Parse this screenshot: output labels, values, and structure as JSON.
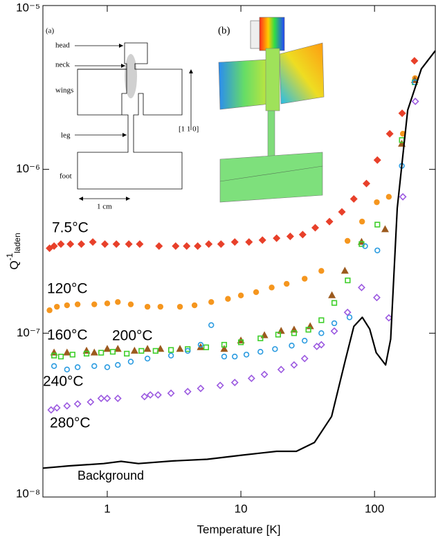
{
  "chart_data": {
    "type": "scatter",
    "xlabel": "Temperature [K]",
    "ylabel": [
      "Q",
      "-1",
      "laden"
    ],
    "xscale": "log",
    "yscale": "log",
    "xlim": [
      0.33,
      285
    ],
    "ylim": [
      1e-08,
      1e-05
    ],
    "xticks": [
      1,
      10,
      100
    ],
    "yticks": [
      {
        "value": 1e-08,
        "label": "10⁻⁸"
      },
      {
        "value": 1e-07,
        "label": "10⁻⁷"
      },
      {
        "value": 1e-06,
        "label": "10⁻⁶"
      },
      {
        "value": 1e-05,
        "label": "10⁻⁵"
      }
    ],
    "series": [
      {
        "name": "7.5°C",
        "color": "#e8402a",
        "marker": "diamond",
        "filled": true,
        "x": [
          0.37,
          0.4,
          0.45,
          0.53,
          0.64,
          0.78,
          0.96,
          1.17,
          1.45,
          1.75,
          2.44,
          3.25,
          3.93,
          4.75,
          5.75,
          7.1,
          9.0,
          11.5,
          14.5,
          18.5,
          23.4,
          29,
          36,
          46,
          57,
          70,
          87,
          105,
          130,
          161,
          199
        ],
        "values": [
          3.3e-07,
          3.4e-07,
          3.5e-07,
          3.5e-07,
          3.5e-07,
          3.6e-07,
          3.5e-07,
          3.5e-07,
          3.5e-07,
          3.5e-07,
          3.4e-07,
          3.4e-07,
          3.4e-07,
          3.4e-07,
          3.5e-07,
          3.5e-07,
          3.6e-07,
          3.6e-07,
          3.7e-07,
          3.8e-07,
          3.9e-07,
          4e-07,
          4.4e-07,
          4.8e-07,
          5.5e-07,
          6.6e-07,
          8.2e-07,
          1.14e-06,
          1.65e-06,
          2.2e-06,
          4.6e-06
        ]
      },
      {
        "name": "120°C",
        "color": "#f5961e",
        "marker": "circle",
        "filled": true,
        "x": [
          0.37,
          0.42,
          0.5,
          0.6,
          0.8,
          1.0,
          1.2,
          1.5,
          2,
          2.5,
          3.5,
          4.5,
          6,
          8,
          10,
          13,
          17,
          22,
          30,
          40,
          62.8,
          80.7,
          104,
          128,
          163,
          201
        ],
        "values": [
          1.38e-07,
          1.45e-07,
          1.48e-07,
          1.5e-07,
          1.5e-07,
          1.52e-07,
          1.55e-07,
          1.5e-07,
          1.45e-07,
          1.45e-07,
          1.45e-07,
          1.48e-07,
          1.55e-07,
          1.62e-07,
          1.7e-07,
          1.78e-07,
          1.9e-07,
          2e-07,
          2.15e-07,
          2.4e-07,
          3.66e-07,
          4.8e-07,
          6.3e-07,
          6.8e-07,
          1.65e-06,
          3.6e-06
        ]
      },
      {
        "name": "160°C",
        "color": "#9c5a1e",
        "marker": "triangle",
        "filled": true,
        "x": [
          0.4,
          0.5,
          0.7,
          0.8,
          1.0,
          1.2,
          1.6,
          2,
          2.5,
          3.5,
          5,
          7.5,
          10,
          15,
          20,
          25,
          33,
          48,
          60,
          80,
          120,
          160,
          200
        ],
        "values": [
          7.6e-08,
          7.6e-08,
          7.8e-08,
          7.6e-08,
          8e-08,
          8e-08,
          7.8e-08,
          8e-08,
          8e-08,
          8e-08,
          8.2e-08,
          8e-08,
          9e-08,
          9.7e-08,
          1.03e-07,
          1.05e-07,
          1.1e-07,
          1.7e-07,
          2.4e-07,
          3.6e-07,
          4.3e-07,
          1.43e-06,
          3.5e-06
        ]
      },
      {
        "name": "200°C",
        "color": "#3ecf2a",
        "marker": "square",
        "filled": false,
        "x": [
          0.4,
          0.45,
          0.55,
          0.7,
          0.9,
          1.1,
          1.4,
          1.8,
          2.3,
          3,
          4,
          5.5,
          7.5,
          10,
          14,
          19,
          25,
          32,
          40,
          50,
          63,
          80,
          105,
          160,
          200
        ],
        "values": [
          7.3e-08,
          7.2e-08,
          7.4e-08,
          7.5e-08,
          7.6e-08,
          7.7e-08,
          7.5e-08,
          7.8e-08,
          7.8e-08,
          7.9e-08,
          8e-08,
          8.2e-08,
          8.5e-08,
          8.8e-08,
          9.3e-08,
          9.8e-08,
          1e-07,
          1.05e-07,
          1.2e-07,
          1.53e-07,
          2.1e-07,
          3.5e-07,
          4.6e-07,
          1.51e-06,
          3.4e-06
        ]
      },
      {
        "name": "240°C",
        "color": "#2a9be0",
        "marker": "circle",
        "filled": false,
        "x": [
          0.4,
          0.5,
          0.6,
          0.8,
          1.0,
          1.2,
          1.5,
          2,
          3,
          4,
          5,
          6,
          7.5,
          9,
          11,
          14,
          18,
          24,
          30,
          40,
          50,
          65,
          85,
          105,
          160,
          200
        ],
        "values": [
          6.3e-08,
          6e-08,
          6.2e-08,
          6.3e-08,
          6.2e-08,
          6.4e-08,
          6.7e-08,
          7e-08,
          7.3e-08,
          7.8e-08,
          8.5e-08,
          1.12e-07,
          7.2e-08,
          7.2e-08,
          7.4e-08,
          7.7e-08,
          8e-08,
          8.4e-08,
          9e-08,
          1e-07,
          1.15e-07,
          1.25e-07,
          3.4e-07,
          3.2e-07,
          1.05e-06,
          3.4e-06
        ]
      },
      {
        "name": "280°C",
        "color": "#9b59e0",
        "marker": "diamond",
        "filled": false,
        "x": [
          0.38,
          0.42,
          0.5,
          0.6,
          0.75,
          0.9,
          1.0,
          1.2,
          1.9,
          2.1,
          2.4,
          3,
          4,
          5,
          7,
          9,
          12,
          15,
          20,
          25,
          30,
          37,
          40,
          50,
          62.8,
          80,
          104,
          128,
          163,
          202
        ],
        "values": [
          3.4e-08,
          3.5e-08,
          3.6e-08,
          3.7e-08,
          3.8e-08,
          4e-08,
          4e-08,
          4e-08,
          4.1e-08,
          4.2e-08,
          4.2e-08,
          4.3e-08,
          4.4e-08,
          4.6e-08,
          4.8e-08,
          5e-08,
          5.3e-08,
          5.6e-08,
          6e-08,
          6.4e-08,
          7e-08,
          8.3e-08,
          8.5e-08,
          1.03e-07,
          1.34e-07,
          1.9e-07,
          1.65e-07,
          1.24e-07,
          6.8e-07,
          2.6e-06
        ]
      },
      {
        "name": "Background",
        "color": "#000000",
        "marker": "line",
        "filled": false,
        "x": [
          0.33,
          0.52,
          0.94,
          1.27,
          1.71,
          3.1,
          5.6,
          10.1,
          18.5,
          26,
          35.5,
          47.7,
          60.6,
          70,
          81,
          92,
          103,
          121,
          132,
          148,
          177,
          224,
          285
        ],
        "values": [
          1.5e-08,
          1.55e-08,
          1.6e-08,
          1.65e-08,
          1.6e-08,
          1.66e-08,
          1.7e-08,
          1.8e-08,
          1.9e-08,
          1.9e-08,
          2.15e-08,
          3.1e-08,
          6.9e-08,
          1.1e-07,
          1.25e-07,
          1.06e-07,
          7.6e-08,
          6.4e-08,
          9.2e-08,
          5.8e-07,
          2.3e-06,
          4.1e-06,
          5.3e-06
        ]
      }
    ],
    "insets": [
      {
        "label": "(a)",
        "texts": [
          "head",
          "neck",
          "wings",
          "leg",
          "foot"
        ],
        "direction": "[1 1 0]",
        "scale_bar": "1 cm"
      },
      {
        "label": "(b)"
      }
    ]
  }
}
